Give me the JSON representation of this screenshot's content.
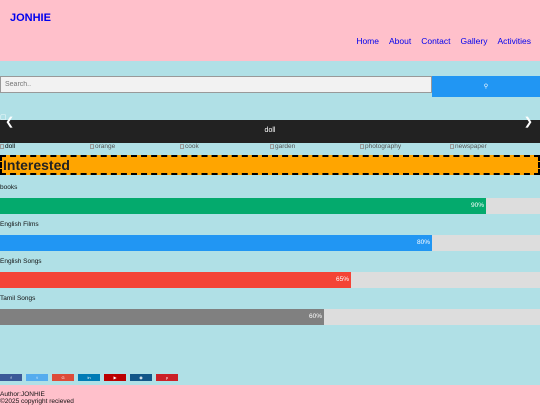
{
  "header": {
    "brand": "JONHIE",
    "nav": [
      "Home",
      "About",
      "Contact",
      "Gallery",
      "Activities"
    ]
  },
  "search": {
    "placeholder": "Search..",
    "button_icon": "search-icon"
  },
  "slider": {
    "caption": "doll",
    "prev_icon": "chevron-left-icon",
    "next_icon": "chevron-right-icon"
  },
  "thumbnails": [
    "doll",
    "orange",
    "cook",
    "garden",
    "photography",
    "newspaper"
  ],
  "interested": {
    "title": "Interested"
  },
  "skills": [
    {
      "label": "books",
      "percent_label": "90%",
      "percent": 90,
      "color": "#04aa6d"
    },
    {
      "label": "English Films",
      "percent_label": "80%",
      "percent": 80,
      "color": "#2196f3"
    },
    {
      "label": "English Songs",
      "percent_label": "65%",
      "percent": 65,
      "color": "#f44336"
    },
    {
      "label": "Tamil Songs",
      "percent_label": "60%",
      "percent": 60,
      "color": "#808080"
    }
  ],
  "social": [
    {
      "icon": "facebook-icon",
      "color": "#3b5998"
    },
    {
      "icon": "twitter-icon",
      "color": "#55acee"
    },
    {
      "icon": "google-icon",
      "color": "#dd4b39"
    },
    {
      "icon": "linkedin-icon",
      "color": "#007bb5"
    },
    {
      "icon": "youtube-icon",
      "color": "#bb0000"
    },
    {
      "icon": "instagram-icon",
      "color": "#125688"
    },
    {
      "icon": "pinterest-icon",
      "color": "#cb2027"
    }
  ],
  "footer": {
    "author": "Author:JONHIE",
    "copyright": "©2025 copyright recieved"
  }
}
